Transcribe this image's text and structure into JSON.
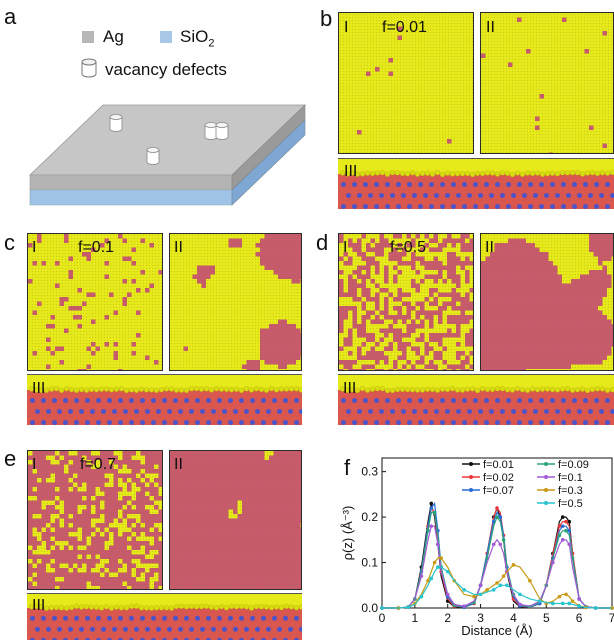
{
  "panels": {
    "a": "a",
    "b": "b",
    "c": "c",
    "d": "d",
    "e": "e",
    "f": "f"
  },
  "schematic": {
    "legend_ag": "Ag",
    "legend_sio2_main": "SiO",
    "legend_sio2_sub": "2",
    "legend_vacancy": "vacancy defects",
    "color_ag": "#b7b7b7",
    "color_sio2": "#a9c8e8"
  },
  "roman": {
    "i": "I",
    "ii": "II",
    "iii": "III"
  },
  "fractions": {
    "b": "f=0.01",
    "c": "f=0.1",
    "d": "f=0.5",
    "e": "f=0.7"
  },
  "atom_colors": {
    "ag": "#e6e91a",
    "defect": "#c85a6e",
    "o": "#d9574f",
    "si": "#4b54c9"
  },
  "chart_data": {
    "type": "line",
    "xlabel": "Distance (Å)",
    "ylabel": "ρ(z) (Å⁻³)",
    "xlim": [
      0,
      7
    ],
    "ylim": [
      0,
      0.33
    ],
    "xticks": [
      0,
      1,
      2,
      3,
      4,
      5,
      6,
      7
    ],
    "yticks": [
      0.0,
      0.1,
      0.2,
      0.3
    ],
    "ytick_labels": [
      "0.0",
      "0.1",
      "0.2",
      "0.3"
    ],
    "x": [
      0,
      0.5,
      0.8,
      1.0,
      1.2,
      1.4,
      1.5,
      1.6,
      1.7,
      1.8,
      2.0,
      2.2,
      2.5,
      2.8,
      3.0,
      3.2,
      3.4,
      3.5,
      3.6,
      3.7,
      3.8,
      4.0,
      4.2,
      4.5,
      4.8,
      5.0,
      5.2,
      5.4,
      5.5,
      5.6,
      5.7,
      5.8,
      6.0,
      6.2,
      6.5,
      7.0
    ],
    "series": [
      {
        "name": "f=0.01",
        "color": "#111111",
        "values": [
          0.0,
          0.0,
          0.002,
          0.02,
          0.09,
          0.19,
          0.23,
          0.2,
          0.14,
          0.07,
          0.015,
          0.003,
          0.002,
          0.01,
          0.05,
          0.12,
          0.2,
          0.22,
          0.2,
          0.15,
          0.08,
          0.015,
          0.003,
          0.002,
          0.01,
          0.05,
          0.12,
          0.19,
          0.2,
          0.2,
          0.19,
          0.12,
          0.02,
          0.003,
          0.0,
          0.0
        ]
      },
      {
        "name": "f=0.02",
        "color": "#e8383d",
        "values": [
          0.0,
          0.0,
          0.002,
          0.02,
          0.08,
          0.18,
          0.22,
          0.21,
          0.15,
          0.08,
          0.02,
          0.004,
          0.002,
          0.01,
          0.05,
          0.12,
          0.2,
          0.22,
          0.21,
          0.16,
          0.09,
          0.02,
          0.004,
          0.002,
          0.01,
          0.05,
          0.12,
          0.18,
          0.19,
          0.19,
          0.18,
          0.12,
          0.02,
          0.003,
          0.0,
          0.0
        ]
      },
      {
        "name": "f=0.07",
        "color": "#2a6dd6",
        "values": [
          0.0,
          0.0,
          0.002,
          0.02,
          0.08,
          0.18,
          0.22,
          0.23,
          0.17,
          0.09,
          0.025,
          0.005,
          0.002,
          0.01,
          0.05,
          0.12,
          0.19,
          0.21,
          0.2,
          0.16,
          0.09,
          0.025,
          0.005,
          0.002,
          0.01,
          0.05,
          0.11,
          0.17,
          0.18,
          0.18,
          0.17,
          0.11,
          0.02,
          0.003,
          0.0,
          0.0
        ]
      },
      {
        "name": "f=0.09",
        "color": "#2aa37a",
        "values": [
          0.0,
          0.0,
          0.002,
          0.02,
          0.08,
          0.17,
          0.21,
          0.21,
          0.16,
          0.09,
          0.03,
          0.006,
          0.003,
          0.012,
          0.05,
          0.11,
          0.18,
          0.2,
          0.19,
          0.15,
          0.09,
          0.03,
          0.006,
          0.003,
          0.012,
          0.05,
          0.11,
          0.16,
          0.17,
          0.17,
          0.16,
          0.11,
          0.02,
          0.003,
          0.0,
          0.0
        ]
      },
      {
        "name": "f=0.1",
        "color": "#a25ad6",
        "values": [
          0.0,
          0.0,
          0.002,
          0.02,
          0.07,
          0.15,
          0.18,
          0.18,
          0.14,
          0.08,
          0.03,
          0.008,
          0.004,
          0.015,
          0.05,
          0.1,
          0.14,
          0.15,
          0.14,
          0.12,
          0.08,
          0.03,
          0.008,
          0.004,
          0.015,
          0.05,
          0.1,
          0.14,
          0.15,
          0.15,
          0.14,
          0.09,
          0.02,
          0.003,
          0.0,
          0.0
        ]
      },
      {
        "name": "f=0.3",
        "color": "#c89a12",
        "values": [
          0.0,
          0.0,
          0.002,
          0.01,
          0.03,
          0.06,
          0.08,
          0.1,
          0.11,
          0.11,
          0.09,
          0.06,
          0.03,
          0.025,
          0.03,
          0.04,
          0.05,
          0.055,
          0.06,
          0.07,
          0.08,
          0.095,
          0.09,
          0.06,
          0.02,
          0.01,
          0.015,
          0.025,
          0.03,
          0.03,
          0.025,
          0.015,
          0.005,
          0.001,
          0.0,
          0.0
        ]
      },
      {
        "name": "f=0.5",
        "color": "#27c4cf",
        "values": [
          0.0,
          0.0,
          0.002,
          0.008,
          0.025,
          0.05,
          0.065,
          0.08,
          0.09,
          0.09,
          0.08,
          0.06,
          0.04,
          0.03,
          0.03,
          0.035,
          0.04,
          0.045,
          0.05,
          0.05,
          0.05,
          0.04,
          0.03,
          0.02,
          0.015,
          0.012,
          0.01,
          0.01,
          0.01,
          0.01,
          0.01,
          0.008,
          0.004,
          0.001,
          0.0,
          0.0
        ]
      }
    ]
  }
}
